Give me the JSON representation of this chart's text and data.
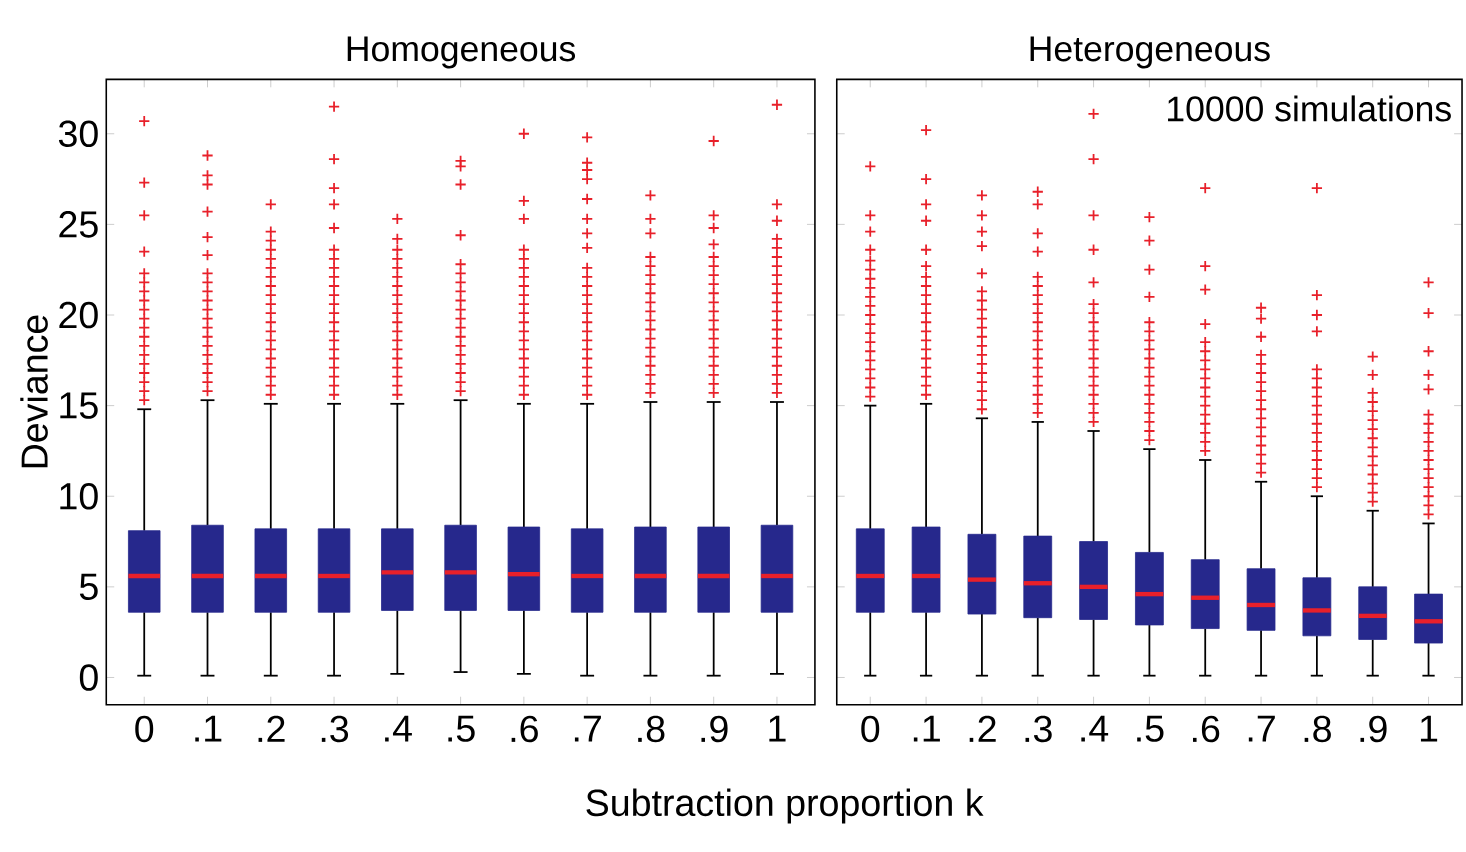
{
  "chart_data": [
    {
      "type": "box",
      "title": "Homogeneous",
      "xlabel": "Subtraction proportion k",
      "ylabel": "Deviance",
      "categories": [
        "0",
        ".1",
        ".2",
        ".3",
        ".4",
        ".5",
        ".6",
        ".7",
        ".8",
        ".9",
        "1"
      ],
      "ylim": [
        -1.5,
        33
      ],
      "yticks": [
        0,
        5,
        10,
        15,
        20,
        25,
        30
      ],
      "series": [
        {
          "color": "#26288c",
          "boxes": [
            {
              "low": 0.1,
              "q1": 3.6,
              "median": 5.6,
              "q3": 8.1,
              "high": 14.8,
              "outliers": [
                15.3,
                15.8,
                16.3,
                16.8,
                17.3,
                17.8,
                18.3,
                18.8,
                19.3,
                19.8,
                20.3,
                20.8,
                21.3,
                21.8,
                22.3,
                23.5,
                25.5,
                27.3,
                30.7
              ]
            },
            {
              "low": 0.1,
              "q1": 3.6,
              "median": 5.6,
              "q3": 8.4,
              "high": 15.3,
              "outliers": [
                15.8,
                16.3,
                16.8,
                17.3,
                17.8,
                18.3,
                18.8,
                19.3,
                19.8,
                20.3,
                20.8,
                21.3,
                21.8,
                22.3,
                23.3,
                24.3,
                25.7,
                27.2,
                27.7,
                28.8
              ]
            },
            {
              "low": 0.1,
              "q1": 3.6,
              "median": 5.6,
              "q3": 8.2,
              "high": 15.1,
              "outliers": [
                15.6,
                16.1,
                16.6,
                17.1,
                17.6,
                18.1,
                18.6,
                19.1,
                19.6,
                20.1,
                20.6,
                21.1,
                21.6,
                22.1,
                22.6,
                23.1,
                23.6,
                24.1,
                24.6,
                26.1
              ]
            },
            {
              "low": 0.1,
              "q1": 3.6,
              "median": 5.6,
              "q3": 8.2,
              "high": 15.1,
              "outliers": [
                15.6,
                16.1,
                16.6,
                17.1,
                17.6,
                18.1,
                18.6,
                19.1,
                19.6,
                20.1,
                20.6,
                21.1,
                21.6,
                22.1,
                22.6,
                23.1,
                23.6,
                24.8,
                26.1,
                27.0,
                28.6,
                31.5
              ]
            },
            {
              "low": 0.2,
              "q1": 3.7,
              "median": 5.8,
              "q3": 8.2,
              "high": 15.1,
              "outliers": [
                15.6,
                16.1,
                16.6,
                17.1,
                17.6,
                18.1,
                18.6,
                19.1,
                19.6,
                20.1,
                20.6,
                21.1,
                21.6,
                22.1,
                22.6,
                23.1,
                23.6,
                24.2,
                25.3
              ]
            },
            {
              "low": 0.3,
              "q1": 3.7,
              "median": 5.8,
              "q3": 8.4,
              "high": 15.3,
              "outliers": [
                15.8,
                16.3,
                16.8,
                17.3,
                17.8,
                18.3,
                18.8,
                19.3,
                19.8,
                20.3,
                20.8,
                21.3,
                21.8,
                22.3,
                22.8,
                24.4,
                27.2,
                28.2,
                28.5
              ]
            },
            {
              "low": 0.2,
              "q1": 3.7,
              "median": 5.7,
              "q3": 8.3,
              "high": 15.1,
              "outliers": [
                15.6,
                16.1,
                16.6,
                17.1,
                17.6,
                18.1,
                18.6,
                19.1,
                19.6,
                20.1,
                20.6,
                21.1,
                21.6,
                22.1,
                22.6,
                23.1,
                23.6,
                25.3,
                26.3,
                30.0
              ]
            },
            {
              "low": 0.1,
              "q1": 3.6,
              "median": 5.6,
              "q3": 8.2,
              "high": 15.1,
              "outliers": [
                15.6,
                16.1,
                16.6,
                17.1,
                17.6,
                18.1,
                18.6,
                19.1,
                19.6,
                20.1,
                20.6,
                21.1,
                21.6,
                22.1,
                22.6,
                23.7,
                24.5,
                25.3,
                26.4,
                27.5,
                28.0,
                28.4,
                29.8
              ]
            },
            {
              "low": 0.1,
              "q1": 3.6,
              "median": 5.6,
              "q3": 8.3,
              "high": 15.2,
              "outliers": [
                15.7,
                16.2,
                16.7,
                17.2,
                17.7,
                18.2,
                18.7,
                19.2,
                19.7,
                20.2,
                20.7,
                21.2,
                21.7,
                22.2,
                22.7,
                23.2,
                24.5,
                25.3,
                26.6
              ]
            },
            {
              "low": 0.1,
              "q1": 3.6,
              "median": 5.6,
              "q3": 8.3,
              "high": 15.2,
              "outliers": [
                15.7,
                16.2,
                16.7,
                17.2,
                17.7,
                18.2,
                18.7,
                19.2,
                19.7,
                20.2,
                20.7,
                21.2,
                21.7,
                22.2,
                22.7,
                23.2,
                23.9,
                24.8,
                25.5,
                29.6
              ]
            },
            {
              "low": 0.2,
              "q1": 3.6,
              "median": 5.6,
              "q3": 8.4,
              "high": 15.2,
              "outliers": [
                15.7,
                16.2,
                16.7,
                17.2,
                17.7,
                18.2,
                18.7,
                19.2,
                19.7,
                20.2,
                20.7,
                21.2,
                21.7,
                22.2,
                22.7,
                23.2,
                23.7,
                24.2,
                25.2,
                26.1,
                31.6
              ]
            }
          ]
        }
      ]
    },
    {
      "type": "box",
      "title": "Heterogeneous",
      "annotations": [
        "10000 simulations"
      ],
      "tick_labels": "x",
      "categories": [
        "0",
        ".1",
        ".2",
        ".3",
        ".4",
        ".5",
        ".6",
        ".7",
        ".8",
        ".9",
        "1"
      ],
      "ylim": [
        -1.5,
        33
      ],
      "yticks": [
        0,
        5,
        10,
        15,
        20,
        25,
        30
      ],
      "series": [
        {
          "color": "#26288c",
          "boxes": [
            {
              "low": 0.1,
              "q1": 3.6,
              "median": 5.6,
              "q3": 8.2,
              "high": 15.0,
              "outliers": [
                15.5,
                16.0,
                16.5,
                17.0,
                17.5,
                18.0,
                18.5,
                19.0,
                19.5,
                20.0,
                20.5,
                21.0,
                21.5,
                22.0,
                22.5,
                23.0,
                23.6,
                24.6,
                25.5,
                28.2
              ]
            },
            {
              "low": 0.1,
              "q1": 3.6,
              "median": 5.6,
              "q3": 8.3,
              "high": 15.1,
              "outliers": [
                15.6,
                16.1,
                16.6,
                17.1,
                17.6,
                18.1,
                18.6,
                19.1,
                19.6,
                20.1,
                20.6,
                21.1,
                21.6,
                22.1,
                22.7,
                23.6,
                25.2,
                26.1,
                27.5,
                30.2
              ]
            },
            {
              "low": 0.1,
              "q1": 3.5,
              "median": 5.4,
              "q3": 7.9,
              "high": 14.3,
              "outliers": [
                14.8,
                15.3,
                15.8,
                16.3,
                16.8,
                17.3,
                17.8,
                18.3,
                18.8,
                19.3,
                19.8,
                20.3,
                20.8,
                21.3,
                22.3,
                23.8,
                24.6,
                25.5,
                26.6
              ]
            },
            {
              "low": 0.1,
              "q1": 3.3,
              "median": 5.2,
              "q3": 7.8,
              "high": 14.1,
              "outliers": [
                14.6,
                15.1,
                15.6,
                16.1,
                16.6,
                17.1,
                17.6,
                18.1,
                18.6,
                19.1,
                19.6,
                20.1,
                20.6,
                21.1,
                21.6,
                22.1,
                23.5,
                24.5,
                26.1,
                26.8
              ]
            },
            {
              "low": 0.1,
              "q1": 3.2,
              "median": 5.0,
              "q3": 7.5,
              "high": 13.6,
              "outliers": [
                14.1,
                14.6,
                15.1,
                15.6,
                16.1,
                16.6,
                17.1,
                17.6,
                18.1,
                18.6,
                19.1,
                19.6,
                20.1,
                20.6,
                21.8,
                23.6,
                25.5,
                28.6,
                31.1
              ]
            },
            {
              "low": 0.1,
              "q1": 2.9,
              "median": 4.6,
              "q3": 6.9,
              "high": 12.6,
              "outliers": [
                13.1,
                13.6,
                14.1,
                14.6,
                15.1,
                15.6,
                16.1,
                16.6,
                17.1,
                17.6,
                18.1,
                18.6,
                19.1,
                19.6,
                21.0,
                22.5,
                24.1,
                25.4
              ]
            },
            {
              "low": 0.1,
              "q1": 2.7,
              "median": 4.4,
              "q3": 6.5,
              "high": 12.0,
              "outliers": [
                12.5,
                13.0,
                13.5,
                14.0,
                14.5,
                15.0,
                15.5,
                16.0,
                16.5,
                17.0,
                17.5,
                18.0,
                18.5,
                19.5,
                21.4,
                22.7,
                27.0
              ]
            },
            {
              "low": 0.1,
              "q1": 2.6,
              "median": 4.0,
              "q3": 6.0,
              "high": 10.8,
              "outliers": [
                11.3,
                11.8,
                12.3,
                12.8,
                13.3,
                13.8,
                14.3,
                14.8,
                15.3,
                15.8,
                16.3,
                16.8,
                17.3,
                17.8,
                18.8,
                19.8,
                20.4
              ]
            },
            {
              "low": 0.1,
              "q1": 2.3,
              "median": 3.7,
              "q3": 5.5,
              "high": 10.0,
              "outliers": [
                10.5,
                11.0,
                11.5,
                12.0,
                12.5,
                13.0,
                13.5,
                14.0,
                14.5,
                15.0,
                15.5,
                16.0,
                16.5,
                17.0,
                19.1,
                20.0,
                21.1,
                27.0
              ]
            },
            {
              "low": 0.1,
              "q1": 2.1,
              "median": 3.4,
              "q3": 5.0,
              "high": 9.2,
              "outliers": [
                9.7,
                10.2,
                10.7,
                11.2,
                11.7,
                12.2,
                12.7,
                13.2,
                13.7,
                14.2,
                14.7,
                15.2,
                15.7,
                16.7,
                17.7
              ]
            },
            {
              "low": 0.1,
              "q1": 1.9,
              "median": 3.1,
              "q3": 4.6,
              "high": 8.5,
              "outliers": [
                9.0,
                9.5,
                10.0,
                10.5,
                11.0,
                11.5,
                12.0,
                12.5,
                13.0,
                13.5,
                14.0,
                14.5,
                15.9,
                16.7,
                18.0,
                20.1,
                21.8
              ]
            }
          ]
        }
      ]
    }
  ]
}
